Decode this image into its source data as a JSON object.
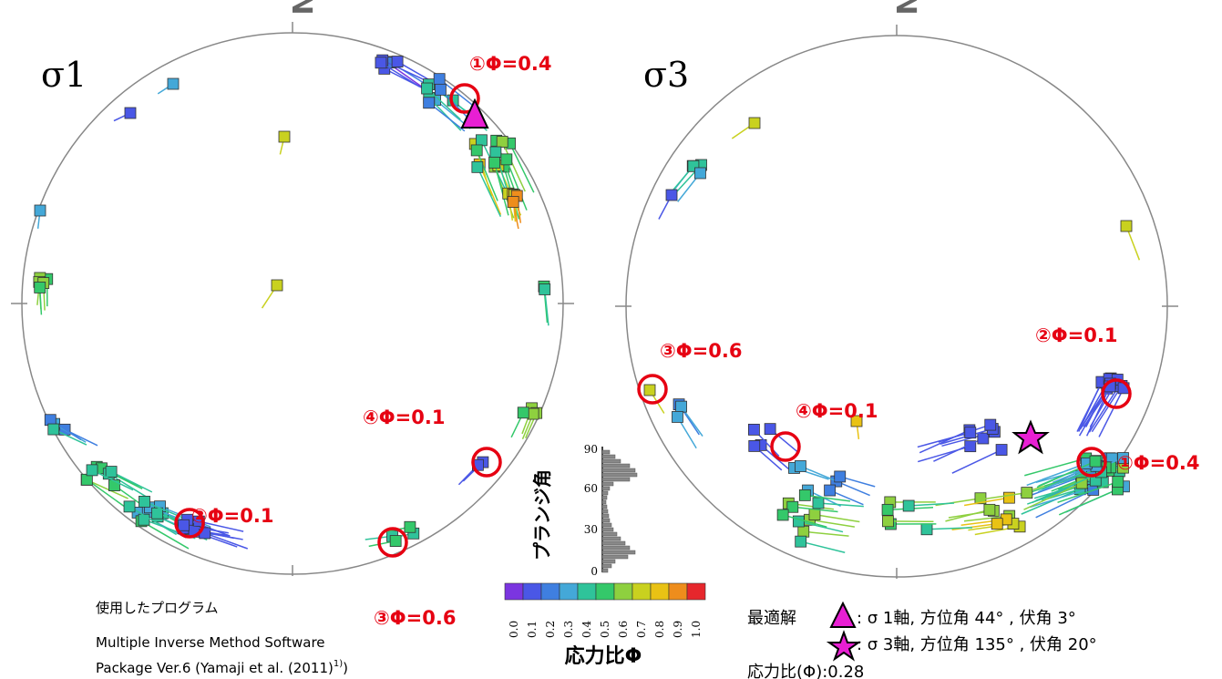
{
  "left_panel": {
    "axis_label": "σ1",
    "north_label": "N",
    "annotations": [
      {
        "label": "①Φ=0.4"
      },
      {
        "label": "②Φ=0.1"
      },
      {
        "label": "③Φ=0.6"
      },
      {
        "label": "④Φ=0.1"
      }
    ]
  },
  "right_panel": {
    "axis_label": "σ3",
    "north_label": "N",
    "annotations": [
      {
        "label": "①Φ=0.4"
      },
      {
        "label": "②Φ=0.1"
      },
      {
        "label": "③Φ=0.6"
      },
      {
        "label": "④Φ=0.1"
      }
    ]
  },
  "colorbar": {
    "title": "応力比Φ",
    "ticks": [
      "0.0",
      "0.1",
      "0.2",
      "0.3",
      "0.4",
      "0.5",
      "0.6",
      "0.7",
      "0.8",
      "0.9",
      "1.0"
    ],
    "colors": [
      "#7b35e0",
      "#4a57e6",
      "#3f7fe0",
      "#44a8d8",
      "#2fc39a",
      "#34c86a",
      "#8ed03f",
      "#c9d11f",
      "#e9c214",
      "#ee8d1c",
      "#e6272c"
    ]
  },
  "plunge_histogram": {
    "title": "プランジ角",
    "ticks": [
      "0",
      "30",
      "60",
      "90"
    ]
  },
  "program": {
    "heading": "使用したプログラム",
    "line1": "Multiple Inverse Method Software",
    "line2": "Package Ver.6 (Yamaji et al. (2011)",
    "sup": "1)",
    "line2_end": ")"
  },
  "best_solution": {
    "heading": "最適解",
    "sigma1": ": σ 1軸, 方位角  44°  , 伏角   3°",
    "sigma3": ": σ 3軸, 方位角 135°  , 伏角 20°",
    "ratio": "応力比(Φ):0.28",
    "marker_color": "#e81fd3"
  }
}
